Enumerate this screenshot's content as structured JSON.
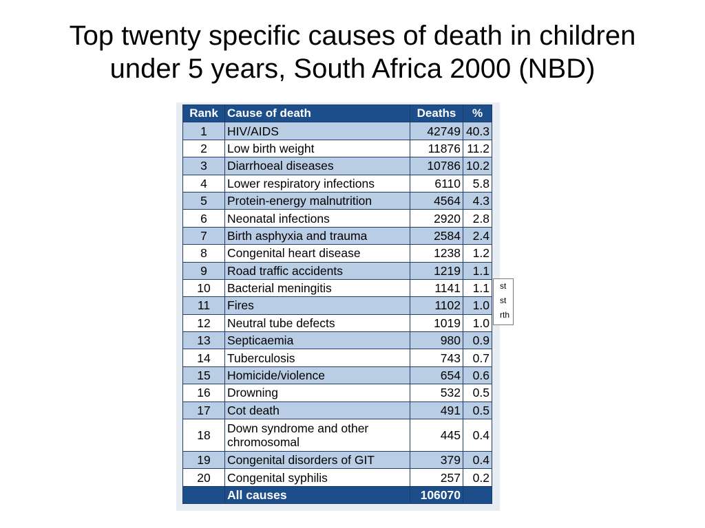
{
  "title": {
    "line1": "Top twenty specific causes of death in children",
    "line2": "under 5 years, South Africa 2000 (NBD)"
  },
  "table": {
    "headers": {
      "rank": "Rank",
      "cause": "Cause of death",
      "deaths": "Deaths",
      "pct": "%"
    },
    "rows": [
      {
        "rank": "1",
        "cause": "HIV/AIDS",
        "deaths": "42749",
        "pct": "40.3"
      },
      {
        "rank": "2",
        "cause": "Low birth weight",
        "deaths": "11876",
        "pct": "11.2"
      },
      {
        "rank": "3",
        "cause": "Diarrhoeal diseases",
        "deaths": "10786",
        "pct": "10.2"
      },
      {
        "rank": "4",
        "cause": "Lower respiratory infections",
        "deaths": "6110",
        "pct": "5.8"
      },
      {
        "rank": "5",
        "cause": "Protein-energy malnutrition",
        "deaths": "4564",
        "pct": "4.3"
      },
      {
        "rank": "6",
        "cause": "Neonatal infections",
        "deaths": "2920",
        "pct": "2.8"
      },
      {
        "rank": "7",
        "cause": "Birth asphyxia and trauma",
        "deaths": "2584",
        "pct": "2.4"
      },
      {
        "rank": "8",
        "cause": "Congenital heart disease",
        "deaths": "1238",
        "pct": "1.2"
      },
      {
        "rank": "9",
        "cause": "Road traffic accidents",
        "deaths": "1219",
        "pct": "1.1"
      },
      {
        "rank": "10",
        "cause": "Bacterial meningitis",
        "deaths": "1141",
        "pct": "1.1"
      },
      {
        "rank": "11",
        "cause": "Fires",
        "deaths": "1102",
        "pct": "1.0"
      },
      {
        "rank": "12",
        "cause": "Neutral tube defects",
        "deaths": "1019",
        "pct": "1.0"
      },
      {
        "rank": "13",
        "cause": "Septicaemia",
        "deaths": "980",
        "pct": "0.9"
      },
      {
        "rank": "14",
        "cause": "Tuberculosis",
        "deaths": "743",
        "pct": "0.7"
      },
      {
        "rank": "15",
        "cause": "Homicide/violence",
        "deaths": "654",
        "pct": "0.6"
      },
      {
        "rank": "16",
        "cause": "Drowning",
        "deaths": "532",
        "pct": "0.5"
      },
      {
        "rank": "17",
        "cause": "Cot death",
        "deaths": "491",
        "pct": "0.5"
      },
      {
        "rank": "18",
        "cause": "Down syndrome and other chromosomal",
        "deaths": "445",
        "pct": "0.4"
      },
      {
        "rank": "19",
        "cause": "Congenital disorders of GIT",
        "deaths": "379",
        "pct": "0.4"
      },
      {
        "rank": "20",
        "cause": "Congenital syphilis",
        "deaths": "257",
        "pct": "0.2"
      }
    ],
    "total": {
      "rank": "",
      "cause": "All causes",
      "deaths": "106070",
      "pct": ""
    }
  },
  "sidenote": {
    "line1": "st",
    "line2": "st",
    "line3": "rth"
  },
  "colors": {
    "header_bg": "#1c4e8c",
    "row_alt_bg": "#b9cde4",
    "row_bg": "#ffffff"
  }
}
